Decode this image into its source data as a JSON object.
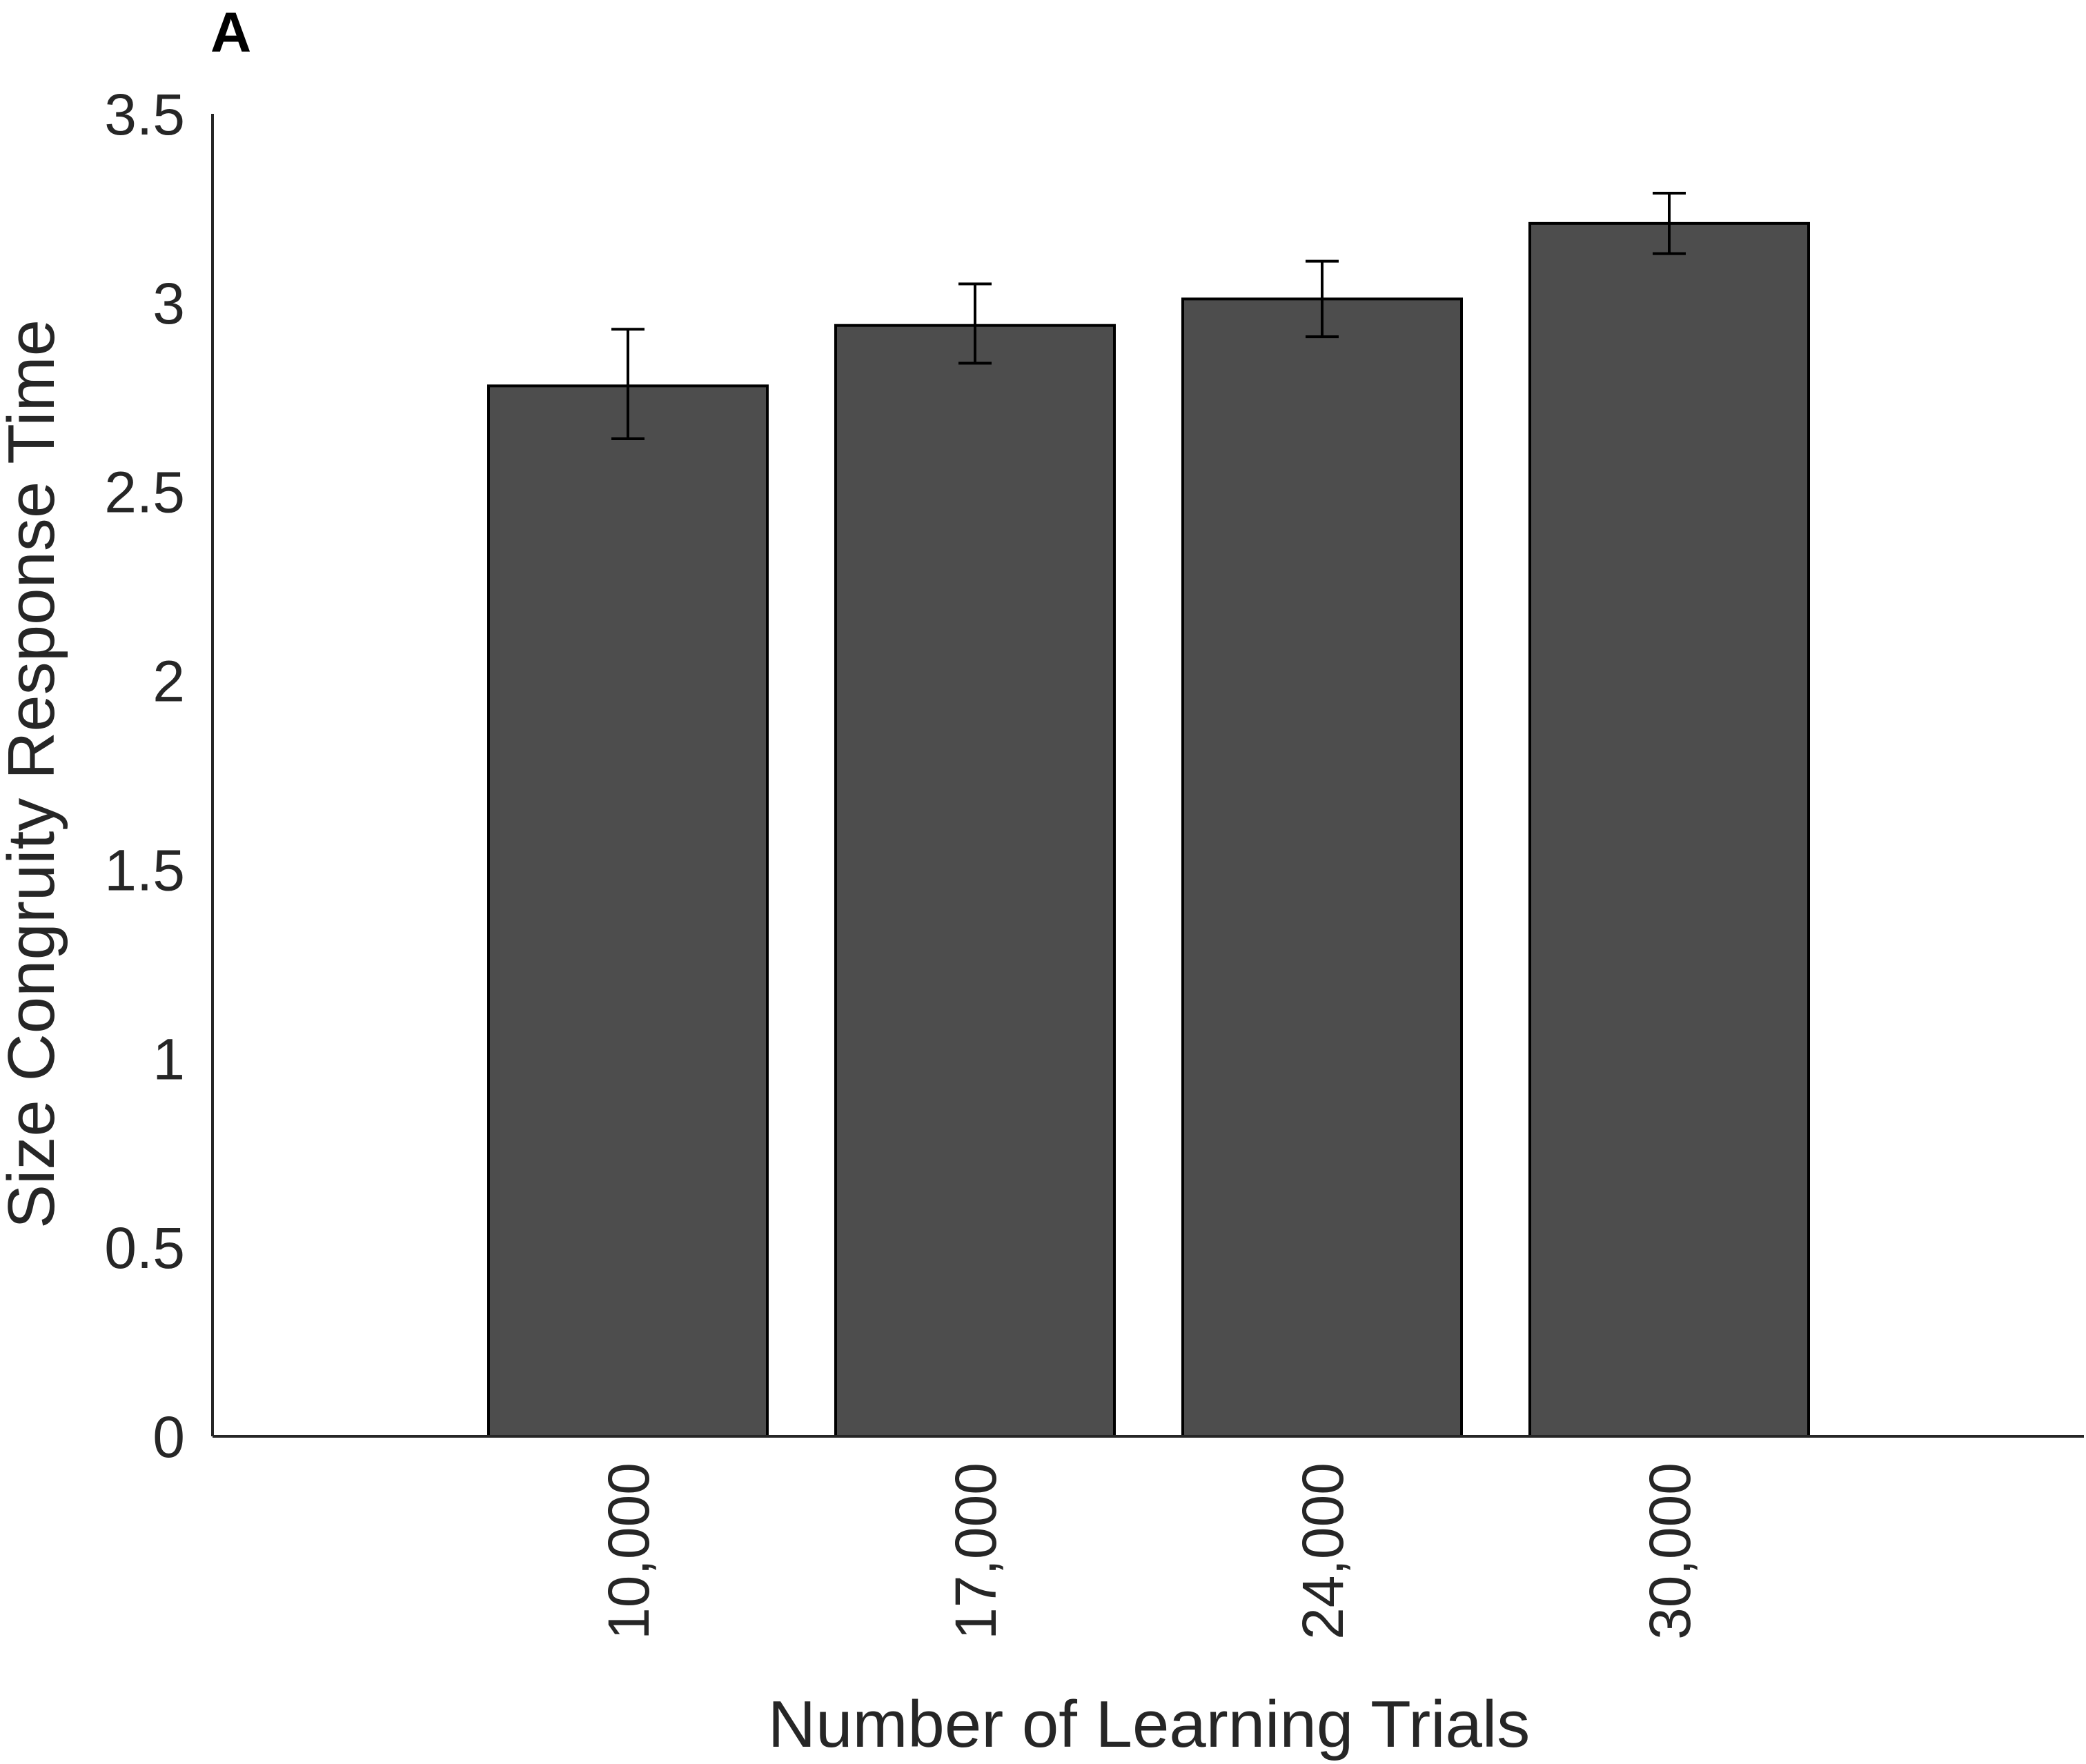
{
  "chart_data": {
    "type": "bar",
    "panel_label": "A",
    "categories": [
      "10,000",
      "17,000",
      "24,000",
      "30,000"
    ],
    "values": [
      2.78,
      2.94,
      3.01,
      3.21
    ],
    "error": [
      [
        2.64,
        2.93
      ],
      [
        2.84,
        3.05
      ],
      [
        2.91,
        3.11
      ],
      [
        3.13,
        3.29
      ]
    ],
    "xlabel": "Number of Learning Trials",
    "ylabel": "Size Congruity Response Time",
    "ylim": [
      0,
      3.5
    ],
    "yticks": [
      "0",
      "0.5",
      "1",
      "1.5",
      "2",
      "2.5",
      "3",
      "3.5"
    ],
    "grid": false,
    "bar_color": "#4d4d4d"
  }
}
